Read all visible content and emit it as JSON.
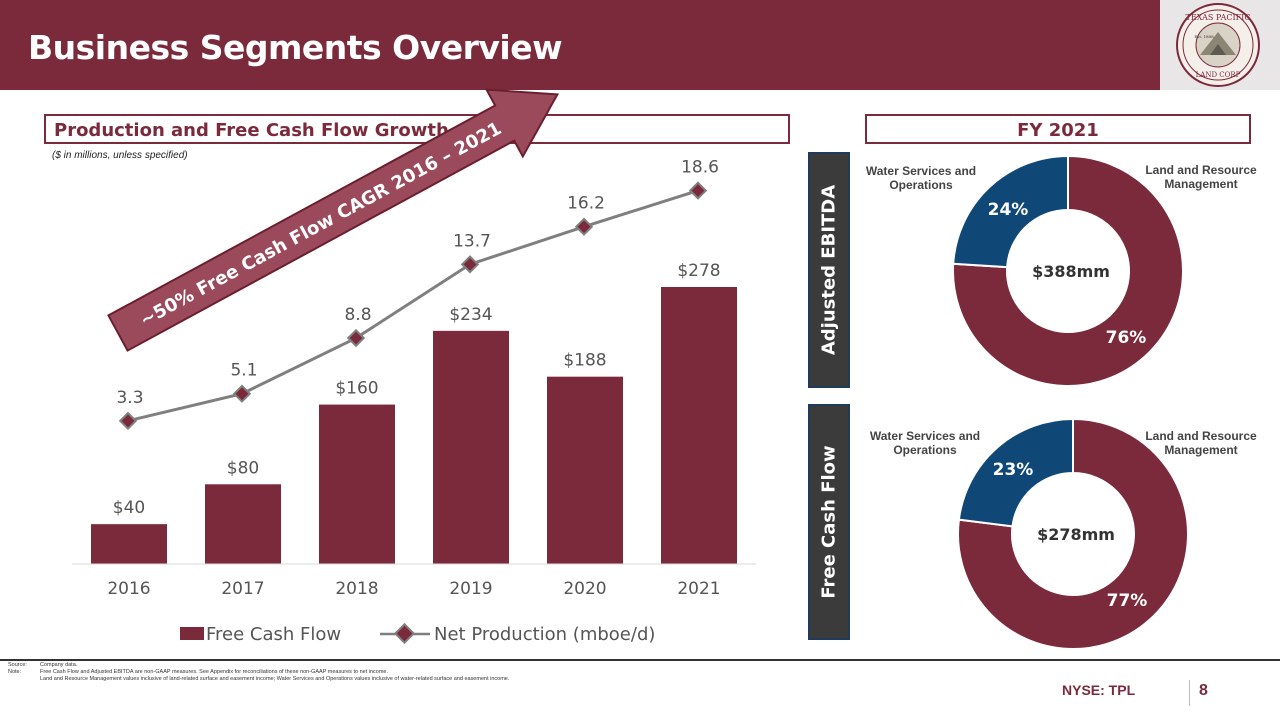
{
  "header": {
    "title": "Business Segments Overview"
  },
  "logo": {
    "text_top": "TEXAS PACIFIC",
    "text_bottom": "LAND CORP",
    "est": "Est. 1888"
  },
  "left_panel": {
    "title": "Production and Free Cash Flow Growth",
    "units": "($ in millions, unless specified)",
    "arrow_text": "~50% Free Cash Flow CAGR 2016 – 2021"
  },
  "right_panel": {
    "title": "FY 2021",
    "ebitda_label": "Adjusted EBITDA",
    "fcf_label": "Free Cash Flow",
    "water_label_1": "Water Services and",
    "water_label_2": "Operations",
    "land_label_1": "Land and Resource",
    "land_label_2": "Management"
  },
  "chart_data": [
    {
      "type": "bar",
      "title": "Production and Free Cash Flow Growth",
      "categories": [
        "2016",
        "2017",
        "2018",
        "2019",
        "2020",
        "2021"
      ],
      "series": [
        {
          "name": "Free Cash Flow",
          "type": "bar",
          "values": [
            40,
            80,
            160,
            234,
            188,
            278
          ],
          "labels": [
            "$40",
            "$80",
            "$160",
            "$234",
            "$188",
            "$278"
          ],
          "color": "#7b2a3b"
        },
        {
          "name": "Net Production (mboe/d)",
          "type": "line",
          "values": [
            3.3,
            5.1,
            8.8,
            13.7,
            16.2,
            18.6
          ],
          "labels": [
            "3.3",
            "5.1",
            "8.8",
            "13.7",
            "16.2",
            "18.6"
          ],
          "color": "#7f7f7f"
        }
      ],
      "legend": [
        "Free Cash Flow",
        "Net Production (mboe/d)"
      ],
      "legend_position": "bottom"
    },
    {
      "type": "pie",
      "title": "Adjusted EBITDA",
      "center_label": "$388mm",
      "slices": [
        {
          "name": "Land and Resource Management",
          "value": 76,
          "label": "76%",
          "color": "#7b2a3b"
        },
        {
          "name": "Water Services and Operations",
          "value": 24,
          "label": "24%",
          "color": "#0f4777"
        }
      ]
    },
    {
      "type": "pie",
      "title": "Free Cash Flow",
      "center_label": "$278mm",
      "slices": [
        {
          "name": "Land and Resource Management",
          "value": 77,
          "label": "77%",
          "color": "#7b2a3b"
        },
        {
          "name": "Water Services and Operations",
          "value": 23,
          "label": "23%",
          "color": "#0f4777"
        }
      ]
    }
  ],
  "footer": {
    "source_label": "Source:",
    "source_text": "Company data.",
    "note_label": "Note:",
    "note_1": "Free Cash Flow and Adjusted EBITDA are non-GAAP measures. See Appendix for reconciliations of these non-GAAP measures to net income.",
    "note_2": "Land and Resource Management values inclusive of land-related surface and easement income; Water Services and Operations values inclusive of water-related surface and easement income.",
    "ticker": "NYSE: TPL",
    "page": "8"
  }
}
